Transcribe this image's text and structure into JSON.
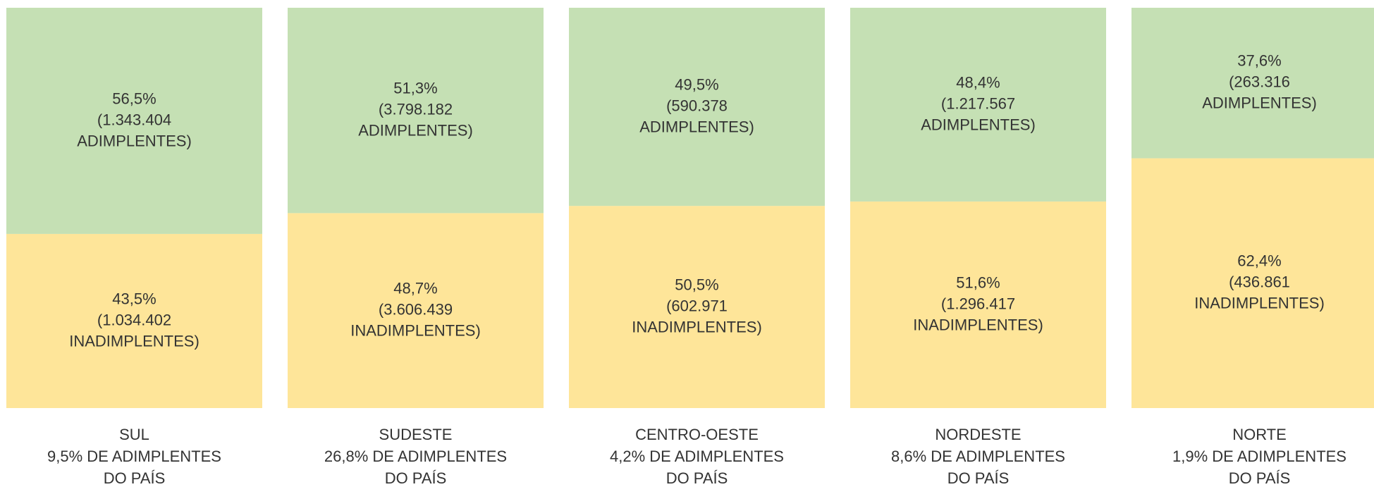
{
  "chart_data": {
    "type": "bar",
    "stacked": true,
    "categories": [
      "SUL",
      "SUDESTE",
      "CENTRO-OESTE",
      "NORDESTE",
      "NORTE"
    ],
    "category_notes": [
      "9,5% DE ADIMPLENTES",
      "26,8% DE ADIMPLENTES",
      "4,2% DE ADIMPLENTES",
      "8,6% DE ADIMPLENTES",
      "1,9% DE ADIMPLENTES"
    ],
    "category_footer": "DO PAÍS",
    "ylim": [
      0,
      100
    ],
    "series": [
      {
        "color": "#fee599",
        "values": [
          43.5,
          48.7,
          50.5,
          51.6,
          62.4
        ],
        "value_labels": [
          "43,5%",
          "48,7%",
          "50,5%",
          "51,6%",
          "62,4%"
        ],
        "counts": [
          1034402,
          3606439,
          602971,
          1296417,
          436861
        ],
        "count_labels": [
          "(1.034.402",
          "(3.606.439",
          "(602.971",
          "(1.296.417",
          "(436.861"
        ],
        "label_suffix": "INADIMPLENTES)"
      },
      {
        "color": "#c5e0b4",
        "values": [
          56.5,
          51.3,
          49.5,
          48.4,
          37.6
        ],
        "value_labels": [
          "56,5%",
          "51,3%",
          "49,5%",
          "48,4%",
          "37,6%"
        ],
        "counts": [
          1343404,
          3798182,
          590378,
          1217567,
          263316
        ],
        "count_labels": [
          "(1.343.404",
          "(3.798.182",
          "(590.378",
          "(1.217.567",
          "(263.316"
        ],
        "label_suffix": "ADIMPLENTES)"
      }
    ]
  }
}
